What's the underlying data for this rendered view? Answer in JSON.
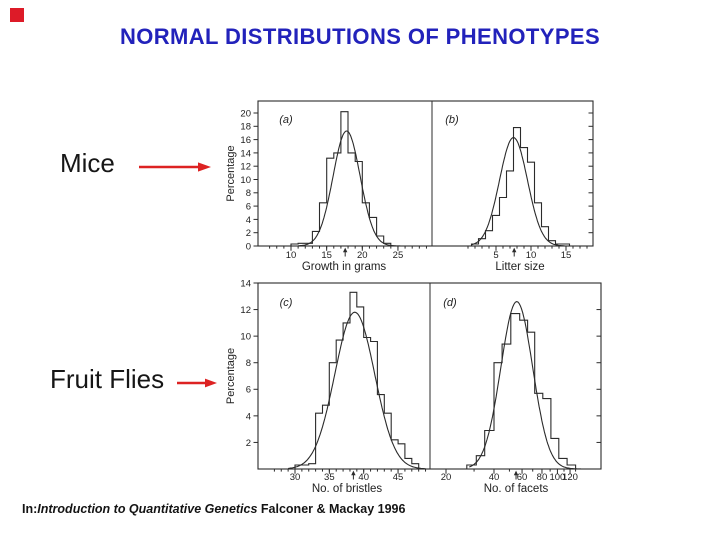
{
  "slide": {
    "title": "NORMAL DISTRIBUTIONS OF PHENOTYPES",
    "title_color": "#2222bb",
    "decor_color": "#dd1b28",
    "arrow_color": "#dd2222",
    "annotations": [
      {
        "id": "mice",
        "text": "Mice"
      },
      {
        "id": "fruit_flies",
        "text": "Fruit Flies"
      }
    ],
    "citation": {
      "prefix": "In:",
      "title_italic": "Introduction to Quantitative Genetics",
      "rest": " Falconer & Mackay 1996"
    }
  },
  "figure": {
    "y_axis_label": "Percentage",
    "row_y_ticks": [
      [
        0,
        2,
        4,
        6,
        8,
        10,
        12,
        14,
        16,
        18,
        20
      ],
      [
        2,
        4,
        6,
        8,
        10,
        12,
        14
      ]
    ],
    "line_color": "#2b2b2b",
    "text_color": "#222222"
  },
  "chart_data": [
    {
      "panel": "(a)",
      "organism": "Mice",
      "type": "bar",
      "xlabel": "Growth in grams",
      "ylabel": "Percentage",
      "xscale": "linear",
      "x_major_ticks": [
        10,
        15,
        20,
        25
      ],
      "x_minor_range": [
        7,
        29
      ],
      "x_minor_step": 1,
      "ylim": [
        0,
        20
      ],
      "bins": {
        "edges_start": 10,
        "bin_width": 1,
        "values": [
          0.3,
          0.4,
          0.4,
          2.2,
          6.5,
          13.2,
          14.0,
          20.2,
          14.0,
          12.7,
          6.5,
          4.3,
          1.5,
          0.4
        ]
      },
      "normal_curve": {
        "mean": 17.8,
        "sd": 1.9,
        "peak": 17.3,
        "range": [
          11,
          25.5
        ]
      },
      "mean_marker": 17.6
    },
    {
      "panel": "(b)",
      "organism": "Mice",
      "type": "bar",
      "xlabel": "Litter size",
      "ylabel": "Percentage",
      "xscale": "linear",
      "x_major_ticks": [
        5,
        10,
        15
      ],
      "x_minor_range": [
        1,
        18
      ],
      "x_minor_step": 1,
      "ylim": [
        0,
        20
      ],
      "bins": {
        "edges_start": 1.5,
        "bin_width": 1,
        "values": [
          0.3,
          1.1,
          2.3,
          4.6,
          7.3,
          11.3,
          17.8,
          14.8,
          12.6,
          6.5,
          2.9,
          0.8,
          0.3,
          0.3
        ]
      },
      "normal_curve": {
        "mean": 7.5,
        "sd": 2.0,
        "peak": 16.3,
        "range": [
          1.5,
          14.8
        ]
      },
      "mean_marker": 7.6
    },
    {
      "panel": "(c)",
      "organism": "Fruit Flies",
      "type": "bar",
      "xlabel": "No. of bristles",
      "ylabel": "Percentage",
      "xscale": "linear",
      "x_major_ticks": [
        30,
        35,
        40,
        45
      ],
      "x_minor_range": [
        27,
        49
      ],
      "x_minor_step": 1,
      "ylim": [
        0,
        14
      ],
      "bins": {
        "edges_start": 30,
        "bin_width": 1,
        "values": [
          0.3,
          0.3,
          0.4,
          4.2,
          4.8,
          8.0,
          9.7,
          11.0,
          13.3,
          12.2,
          9.9,
          9.6,
          5.6,
          4.2,
          2.2,
          1.9,
          0.8,
          0.4
        ]
      },
      "normal_curve": {
        "mean": 38.7,
        "sd": 2.9,
        "peak": 11.8,
        "range": [
          29,
          49
        ]
      },
      "mean_marker": 38.5
    },
    {
      "panel": "(d)",
      "organism": "Fruit Flies",
      "type": "bar",
      "xlabel": "No. of facets",
      "ylabel": "Percentage",
      "xscale": "log",
      "x_major_ticks": [
        20,
        40,
        60,
        80,
        100,
        120
      ],
      "x_minor_ticks": [
        30,
        50,
        70,
        90,
        110,
        130
      ],
      "ylim": [
        0,
        14
      ],
      "bins": {
        "edges": [
          27,
          31,
          35,
          40,
          45,
          51,
          58,
          65,
          72,
          81,
          91,
          102,
          115,
          130
        ],
        "values": [
          0.3,
          1.0,
          2.9,
          8.0,
          9.4,
          11.7,
          11.2,
          10.3,
          5.7,
          5.3,
          2.3,
          0.8,
          0.3
        ]
      },
      "normal_curve": {
        "mean_log": 1.745,
        "sd_log": 0.1,
        "peak": 12.6,
        "range": [
          28,
          150
        ]
      },
      "mean_marker": 55
    }
  ]
}
